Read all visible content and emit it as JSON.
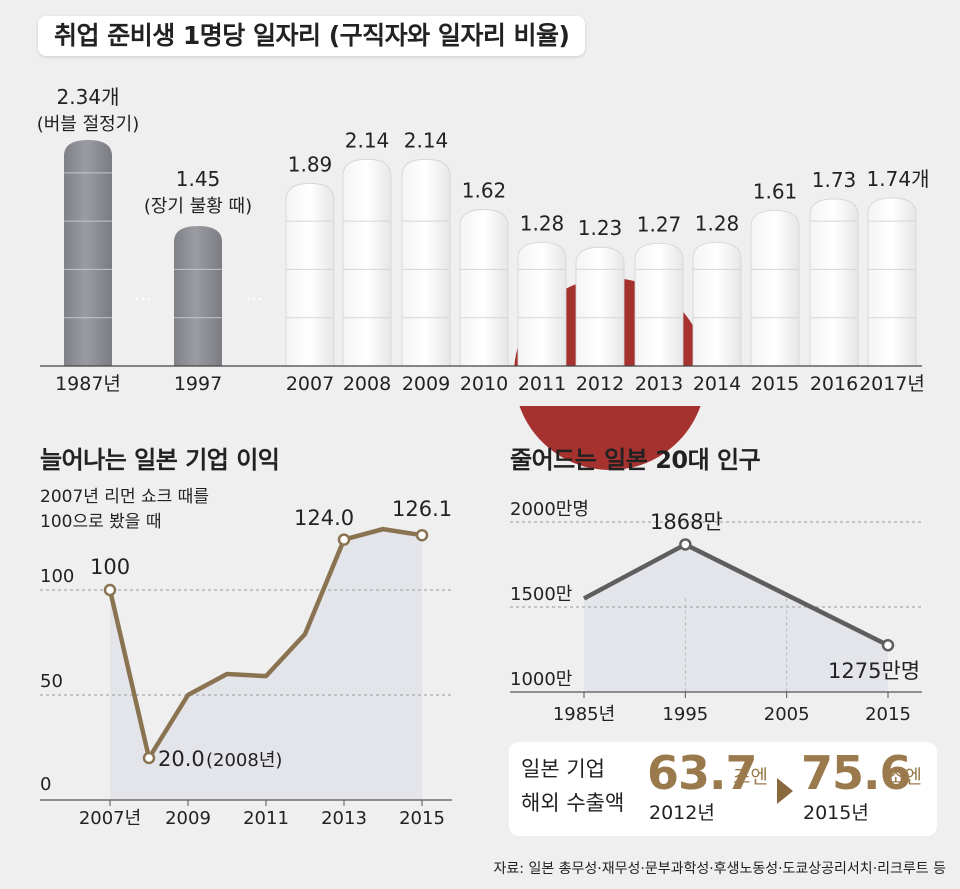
{
  "title": "취업 준비생 1명당 일자리 (구직자와 일자리 비율)",
  "chart_data": [
    {
      "type": "bar",
      "title": "취업 준비생 1명당 일자리 (구직자와 일자리 비율)",
      "categories": [
        "1987년",
        "1997",
        "2007",
        "2008",
        "2009",
        "2010",
        "2011",
        "2012",
        "2013",
        "2014",
        "2015",
        "2016",
        "2017년"
      ],
      "values": [
        2.34,
        1.45,
        1.89,
        2.14,
        2.14,
        1.62,
        1.28,
        1.23,
        1.27,
        1.28,
        1.61,
        1.73,
        1.74
      ],
      "value_labels": [
        "2.34개",
        "1.45",
        "1.89",
        "2.14",
        "2.14",
        "1.62",
        "1.28",
        "1.23",
        "1.27",
        "1.28",
        "1.61",
        "1.73",
        "1.74개"
      ],
      "annotations": [
        "(버블 절정기)",
        "(장기 불황 때)"
      ],
      "gap_marker": "···",
      "colors": {
        "highlight": "#8e9096",
        "bar": "#ffffff",
        "sun": "#a5322e"
      },
      "ylim": [
        0,
        2.34
      ]
    },
    {
      "type": "line",
      "title": "늘어나는 일본 기업 이익",
      "note": [
        "2007년 리먼 쇼크 때를",
        "100으로 봤을 때"
      ],
      "x": [
        2007,
        2008,
        2009,
        2010,
        2011,
        2012,
        2013,
        2014,
        2015
      ],
      "values": [
        100,
        20.0,
        50,
        60,
        59,
        79,
        124.0,
        129,
        126.1
      ],
      "xticks": [
        "2007년",
        "2009",
        "2011",
        "2013",
        "2015"
      ],
      "yticks": [
        "100",
        "50",
        "0"
      ],
      "ylim": [
        0,
        140
      ],
      "labels": {
        "start": "100",
        "low": "20.0",
        "low_suffix": "(2008년)",
        "peak": "124.0",
        "end": "126.1"
      },
      "colors": {
        "line": "#8a7350",
        "area": "#e3e5eb"
      }
    },
    {
      "type": "line",
      "title": "줄어드는 일본 20대 인구",
      "x": [
        1985,
        1995,
        2015
      ],
      "values": [
        1550,
        1868,
        1275
      ],
      "xticks": [
        "1985년",
        "1995",
        "2005",
        "2015"
      ],
      "yticks": [
        "2000만명",
        "1500만",
        "1000만"
      ],
      "ylim": [
        1000,
        2000
      ],
      "labels": {
        "peak": "1868만",
        "end": "1275만명"
      },
      "colors": {
        "line": "#5e5e5e",
        "area": "#e3e5eb"
      }
    }
  ],
  "export": {
    "label_line1": "일본 기업",
    "label_line2": "해외 수출액",
    "value_2012": "63.7",
    "unit": "조엔",
    "year_2012": "2012년",
    "value_2015": "75.6",
    "year_2015": "2015년"
  },
  "source": "자료: 일본 총무성·재무성·문부과학성·후생노동성·도쿄상공리서치·리크루트 등"
}
